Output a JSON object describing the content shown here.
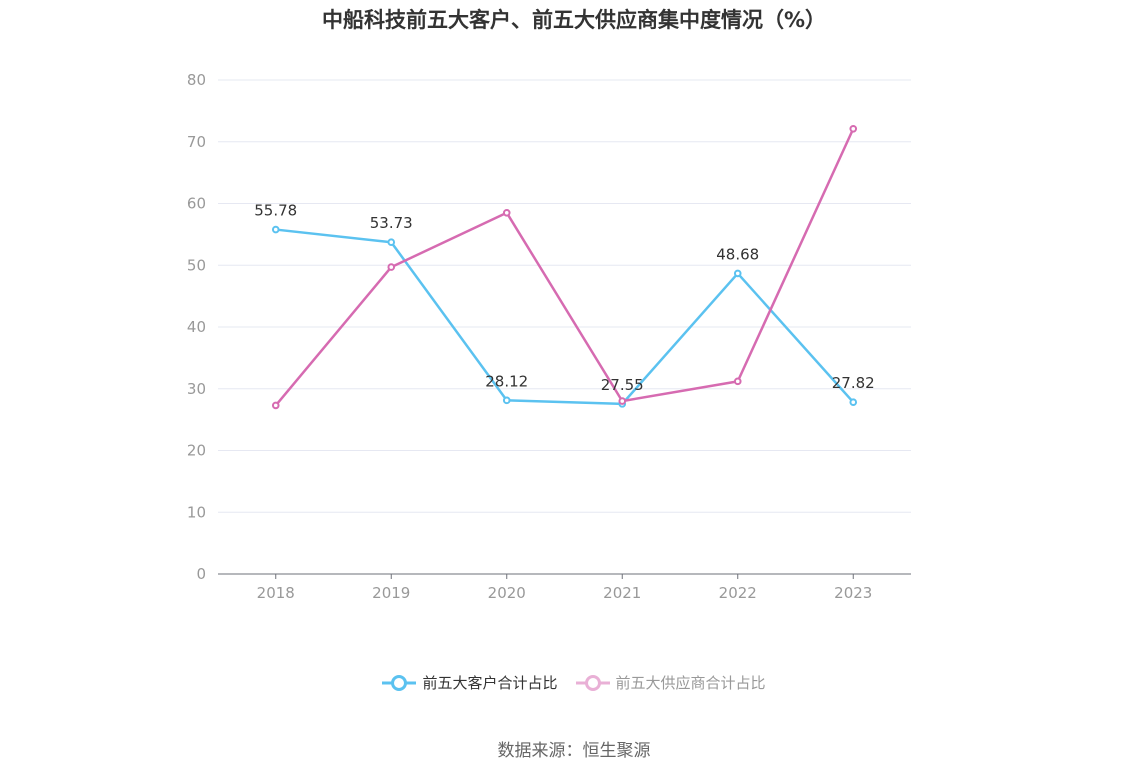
{
  "chart_data": {
    "type": "line",
    "title": "中船科技前五大客户、前五大供应商集中度情况（%）",
    "categories": [
      "2018",
      "2019",
      "2020",
      "2021",
      "2022",
      "2023"
    ],
    "ylim": [
      0,
      80
    ],
    "yticks": [
      0,
      10,
      20,
      30,
      40,
      50,
      60,
      70,
      80
    ],
    "grid": true,
    "legend_position": "bottom",
    "series": [
      {
        "name": "前五大客户合计占比",
        "color": "#5bc2f0",
        "values": [
          55.78,
          53.73,
          28.12,
          27.55,
          48.68,
          27.82
        ],
        "show_labels": true
      },
      {
        "name": "前五大供应商合计占比",
        "color": "#d66bb1",
        "values": [
          27.3,
          49.7,
          58.5,
          28.0,
          31.2,
          72.1
        ],
        "show_labels": false
      }
    ]
  },
  "legend": {
    "item0": "前五大客户合计占比",
    "item1": "前五大供应商合计占比"
  },
  "source": "数据来源：恒生聚源"
}
